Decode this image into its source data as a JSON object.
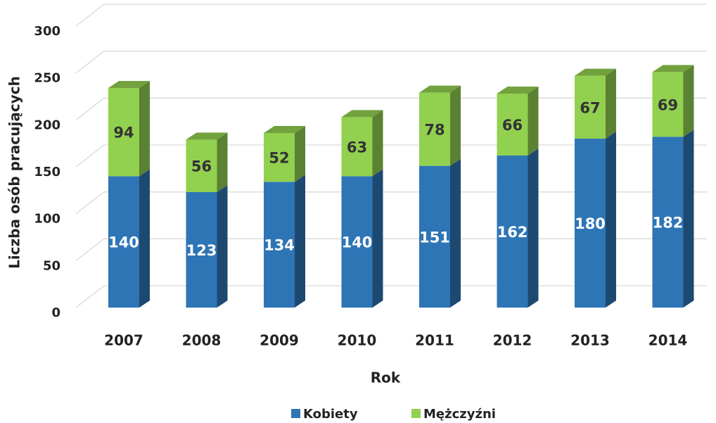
{
  "chart_data": {
    "type": "bar",
    "stacked": true,
    "three_d": true,
    "x_label": "Rok",
    "y_label": "Liczba osób pracujących",
    "categories": [
      "2007",
      "2008",
      "2009",
      "2010",
      "2011",
      "2012",
      "2013",
      "2014"
    ],
    "series": [
      {
        "name": "Kobiety",
        "color": "#2e75b6",
        "values": [
          140,
          123,
          134,
          140,
          151,
          162,
          180,
          182
        ]
      },
      {
        "name": "Mężczyźni",
        "color": "#92d050",
        "values": [
          94,
          56,
          52,
          63,
          78,
          66,
          67,
          69
        ]
      }
    ],
    "ylim": [
      0,
      300
    ],
    "yticks": [
      0,
      50,
      100,
      150,
      200,
      250,
      300
    ],
    "grid": true,
    "legend": "bottom"
  }
}
